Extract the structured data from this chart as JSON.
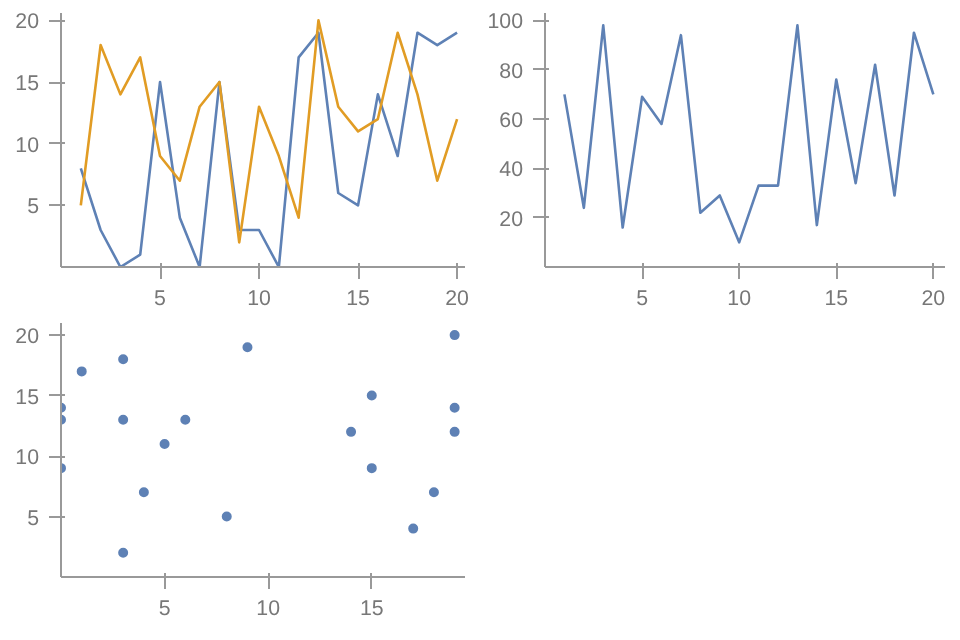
{
  "chart_data": [
    {
      "type": "line",
      "x": [
        1,
        2,
        3,
        4,
        5,
        6,
        7,
        8,
        9,
        10,
        11,
        12,
        13,
        14,
        15,
        16,
        17,
        18,
        19,
        20
      ],
      "xlim": [
        0,
        20.4
      ],
      "ylim": [
        0,
        20.6
      ],
      "xticks": [
        5,
        10,
        15,
        20
      ],
      "yticks": [
        5,
        10,
        15,
        20
      ],
      "grid": false,
      "series": [
        {
          "color": "#5e81b5",
          "values": [
            8,
            3,
            0,
            1,
            15,
            4,
            0,
            15,
            3,
            3,
            0,
            17,
            19,
            6,
            5,
            14,
            9,
            19,
            18,
            19
          ]
        },
        {
          "color": "#e19c24",
          "values": [
            5,
            18,
            14,
            17,
            9,
            7,
            13,
            15,
            2,
            13,
            9,
            4,
            20,
            13,
            11,
            12,
            19,
            14,
            7,
            12
          ]
        }
      ]
    },
    {
      "type": "line",
      "x": [
        1,
        2,
        3,
        4,
        5,
        6,
        7,
        8,
        9,
        10,
        11,
        12,
        13,
        14,
        15,
        16,
        17,
        18,
        19,
        20
      ],
      "xlim": [
        0,
        20.6
      ],
      "ylim": [
        0,
        103
      ],
      "xticks": [
        5,
        10,
        15,
        20
      ],
      "yticks": [
        20,
        40,
        60,
        80,
        100
      ],
      "grid": false,
      "series": [
        {
          "color": "#5e81b5",
          "values": [
            70,
            24,
            98,
            16,
            69,
            58,
            94,
            22,
            29,
            10,
            33,
            33,
            98,
            17,
            76,
            34,
            82,
            29,
            95,
            70
          ]
        }
      ]
    },
    {
      "type": "scatter",
      "marker": "circle",
      "xlim": [
        0,
        19.5
      ],
      "ylim": [
        0,
        21
      ],
      "xticks": [
        5,
        10,
        15
      ],
      "yticks": [
        5,
        10,
        15,
        20
      ],
      "grid": false,
      "series": [
        {
          "color": "#5e81b5",
          "x": [
            0,
            0,
            0,
            1,
            3,
            3,
            3,
            4,
            5,
            6,
            8,
            9,
            14,
            15,
            15,
            17,
            18,
            19,
            19,
            19
          ],
          "values": [
            14,
            13,
            9,
            17,
            18,
            13,
            2,
            7,
            11,
            13,
            5,
            19,
            12,
            15,
            9,
            4,
            7,
            20,
            14,
            12
          ]
        }
      ]
    }
  ]
}
